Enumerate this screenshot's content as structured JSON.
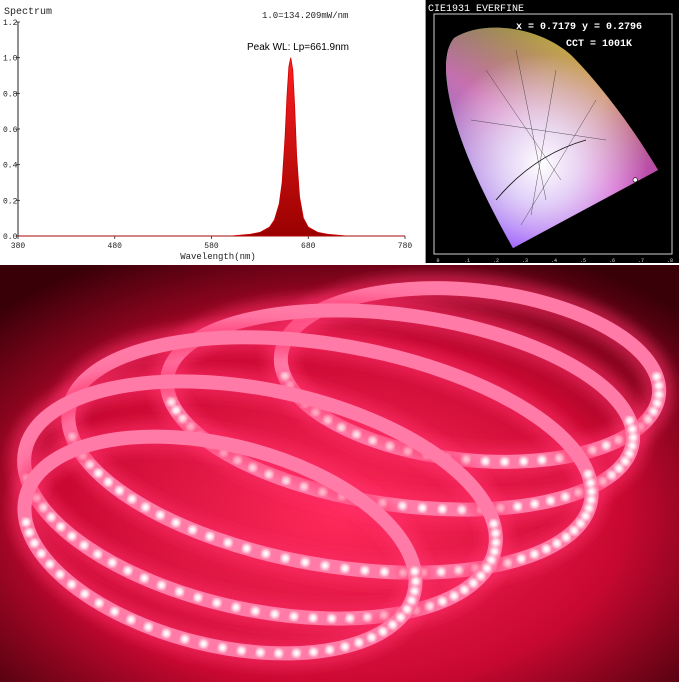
{
  "chart_data": [
    {
      "type": "area",
      "title": "Spectrum",
      "scale_note": "1.0=134.209mW/nm",
      "annotation": "Peak WL: Lp=661.9nm",
      "xlabel": "Wavelength(nm)",
      "ylabel": "",
      "xlim": [
        380,
        780
      ],
      "ylim": [
        0,
        1.2
      ],
      "x_ticks": [
        "380",
        "480",
        "580",
        "680",
        "780"
      ],
      "y_ticks": [
        "0.0",
        "0.2",
        "0.4",
        "0.6",
        "0.8",
        "1.0",
        "1.2"
      ],
      "peak_wavelength": 661.9,
      "series": [
        {
          "x": [
            380,
            600,
            620,
            630,
            640,
            645,
            650,
            653,
            656,
            658,
            660,
            661.9,
            664,
            666,
            668,
            671,
            675,
            680,
            690,
            700,
            720,
            780
          ],
          "y": [
            0.0,
            0.0,
            0.01,
            0.02,
            0.05,
            0.09,
            0.18,
            0.3,
            0.55,
            0.78,
            0.95,
            1.0,
            0.93,
            0.72,
            0.45,
            0.22,
            0.1,
            0.05,
            0.02,
            0.01,
            0.0,
            0.0
          ],
          "color": "#cc0000"
        }
      ]
    },
    {
      "type": "scatter",
      "title": "CIE1931 EVERFINE",
      "coordinate_readout": "x = 0.7179 y = 0.2796",
      "cct_readout": "CCT = 1001K",
      "xlim": [
        0,
        0.8
      ],
      "ylim": [
        0,
        0.9
      ],
      "x_ticks": [
        "0",
        ".1",
        ".2",
        ".3",
        ".4",
        ".5",
        ".6",
        ".7",
        ".8"
      ],
      "point": {
        "x": 0.7179,
        "y": 0.2796
      }
    }
  ],
  "colors": {
    "spectrum_fill": "#cc0000",
    "spectrum_fill_light": "#ff3030",
    "led_glow": "#ff2d6a",
    "led_strip": "#ff7aa6",
    "background_dark": "#1a0006"
  },
  "photo": {
    "subject": "led-strip-reel-red"
  }
}
